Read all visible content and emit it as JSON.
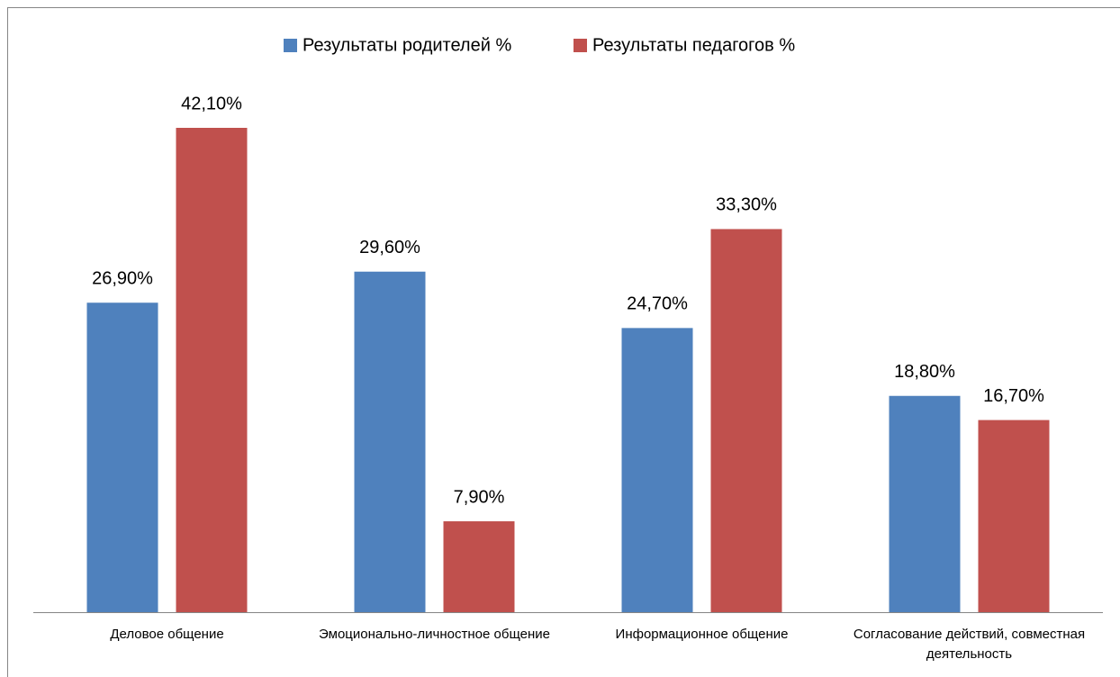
{
  "chart_data": {
    "type": "bar",
    "categories": [
      "Деловое общение",
      "Эмоционально-личностное общение",
      "Информационное общение",
      "Согласование действий, совместная деятельность"
    ],
    "series": [
      {
        "name": "Результаты родителей %",
        "color": "#4f81bd",
        "values": [
          26.9,
          29.6,
          24.7,
          18.8
        ],
        "value_labels": [
          "26,90%",
          "29,60%",
          "24,70%",
          "18,80%"
        ]
      },
      {
        "name": "Результаты педагогов %",
        "color": "#c0504d",
        "values": [
          42.1,
          7.9,
          33.3,
          16.7
        ],
        "value_labels": [
          "42,10%",
          "7,90%",
          "33,30%",
          "16,70%"
        ]
      }
    ],
    "legend": "top"
  }
}
